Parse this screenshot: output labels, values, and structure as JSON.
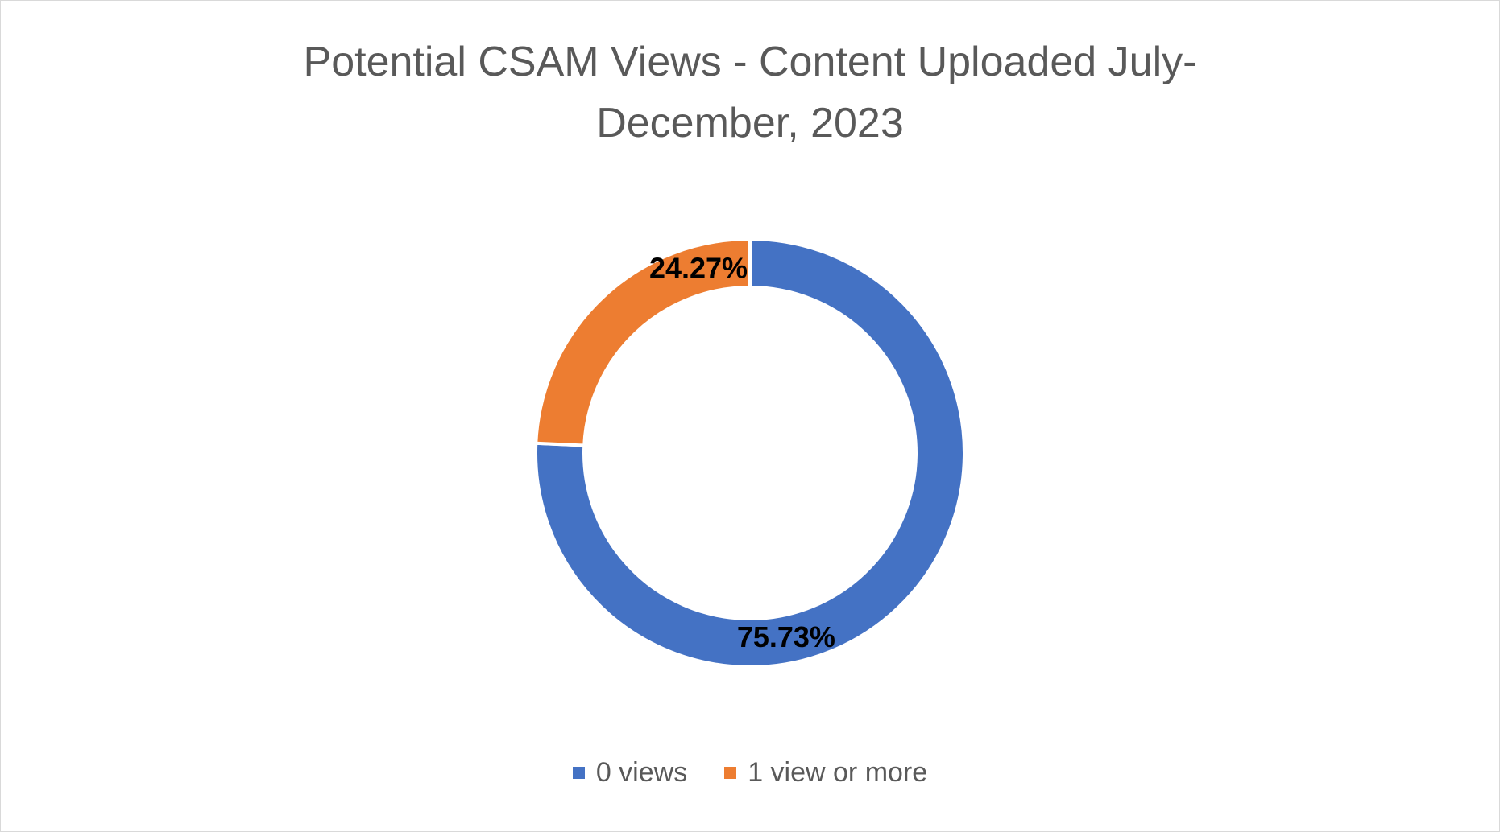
{
  "chart_data": {
    "type": "pie",
    "variant": "donut",
    "title_lines": [
      "Potential CSAM Views - Content Uploaded July-",
      "December, 2023"
    ],
    "categories": [
      "0 views",
      "1 view or more"
    ],
    "values": [
      75.73,
      24.27
    ],
    "value_labels": [
      "75.73%",
      "24.27%"
    ],
    "colors": [
      "#4472C4",
      "#ED7D31"
    ],
    "legend_position": "bottom",
    "start_angle": "top, clockwise"
  }
}
